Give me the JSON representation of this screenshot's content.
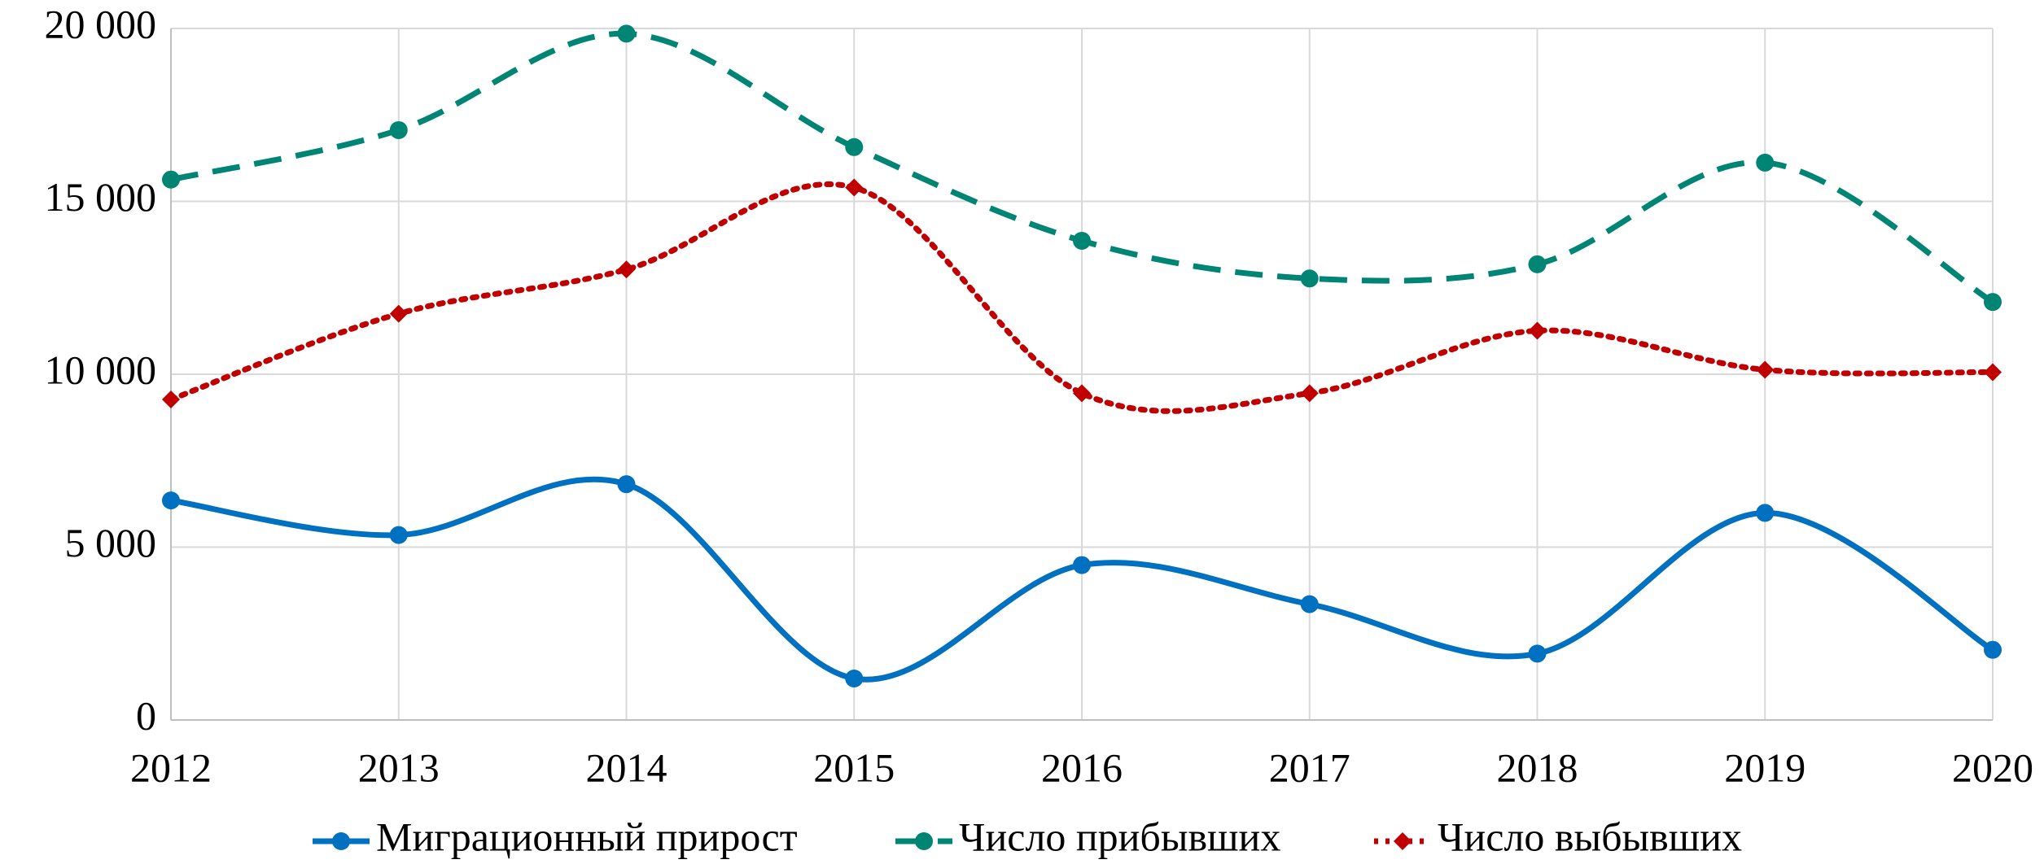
{
  "chart_data": {
    "type": "line",
    "categories": [
      "2012",
      "2013",
      "2014",
      "2015",
      "2016",
      "2017",
      "2018",
      "2019",
      "2020"
    ],
    "series": [
      {
        "name": "Миграционный прирост",
        "color": "#0070c0",
        "dash": "solid",
        "marker": "circle",
        "values": [
          6350,
          5350,
          6820,
          1200,
          4480,
          3350,
          1920,
          5990,
          2030
        ]
      },
      {
        "name": "Число прибывших",
        "color": "#008575",
        "dash": "dashed",
        "marker": "circle",
        "values": [
          15630,
          17060,
          19850,
          16570,
          13860,
          12770,
          13180,
          16120,
          12090
        ]
      },
      {
        "name": "Число выбывших",
        "color": "#c00000",
        "dash": "dotted",
        "marker": "diamond",
        "values": [
          9270,
          11750,
          13030,
          15400,
          9450,
          9450,
          11260,
          10130,
          10060
        ]
      }
    ],
    "ylim": [
      0,
      20000
    ],
    "yticks": [
      0,
      {
        "value": 5000,
        "label": "5 000"
      },
      {
        "value": 10000,
        "label": "10 000"
      },
      {
        "value": 15000,
        "label": "15 000"
      },
      {
        "value": 20000,
        "label": "20 000"
      }
    ],
    "grid": true,
    "smooth": true,
    "legend": "bottom"
  }
}
